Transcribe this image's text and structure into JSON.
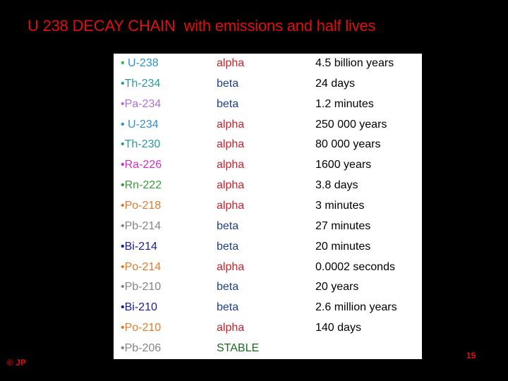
{
  "slide": {
    "title": "U 238 DECAY CHAIN  with emissions and half lives",
    "copyright": "© JP",
    "page_number": "15"
  },
  "colors": {
    "title": "#e01010",
    "alpha": "#cc1f2a",
    "beta": "#1f3f8f",
    "stable": "#1a6b1f",
    "half_life": "#000000"
  },
  "rows": [
    {
      "bullet": "• ",
      "isotope": "U-238",
      "isotope_color": "#2f8fd6",
      "bullet_color": "#33bb33",
      "emission": "alpha",
      "emission_color": "#cc1f2a",
      "half_life": "4.5 billion years"
    },
    {
      "bullet": "•",
      "isotope": "Th-234",
      "isotope_color": "#2a9a9a",
      "bullet_color": "#2a9a9a",
      "emission": "beta",
      "emission_color": "#1f3f8f",
      "half_life": "24 days"
    },
    {
      "bullet": "•",
      "isotope": "Pa-234",
      "isotope_color": "#b070d8",
      "bullet_color": "#b070d8",
      "emission": "beta",
      "emission_color": "#1f3f8f",
      "half_life": "1.2 minutes"
    },
    {
      "bullet": "• ",
      "isotope": "U-234",
      "isotope_color": "#2f8fd6",
      "bullet_color": "#2f8fd6",
      "emission": "alpha",
      "emission_color": "#cc1f2a",
      "half_life": "250 000 years"
    },
    {
      "bullet": "•",
      "isotope": "Th-230",
      "isotope_color": "#2a9a9a",
      "bullet_color": "#2a9a9a",
      "emission": "alpha",
      "emission_color": "#cc1f2a",
      "half_life": "80 000 years"
    },
    {
      "bullet": "•",
      "isotope": "Ra-226",
      "isotope_color": "#d030c8",
      "bullet_color": "#d030c8",
      "emission": "alpha",
      "emission_color": "#cc1f2a",
      "half_life": "1600 years"
    },
    {
      "bullet": "•",
      "isotope": "Rn-222",
      "isotope_color": "#3a9a3a",
      "bullet_color": "#3a9a3a",
      "emission": "alpha",
      "emission_color": "#cc1f2a",
      "half_life": "3.8 days"
    },
    {
      "bullet": "•",
      "isotope": "Po-218",
      "isotope_color": "#e07a2a",
      "bullet_color": "#e07a2a",
      "emission": "alpha",
      "emission_color": "#cc1f2a",
      "half_life": "3 minutes"
    },
    {
      "bullet": "•",
      "isotope": "Pb-214",
      "isotope_color": "#858585",
      "bullet_color": "#858585",
      "emission": "beta",
      "emission_color": "#1f3f8f",
      "half_life": "27 minutes"
    },
    {
      "bullet": "•",
      "isotope": "Bi-214",
      "isotope_color": "#1a1aa0",
      "bullet_color": "#1a1aa0",
      "emission": "beta",
      "emission_color": "#1f3f8f",
      "half_life": "20 minutes"
    },
    {
      "bullet": "•",
      "isotope": "Po-214",
      "isotope_color": "#e07a2a",
      "bullet_color": "#e07a2a",
      "emission": "alpha",
      "emission_color": "#cc1f2a",
      "half_life": "0.0002 seconds"
    },
    {
      "bullet": "•",
      "isotope": "Pb-210",
      "isotope_color": "#858585",
      "bullet_color": "#858585",
      "emission": "beta",
      "emission_color": "#1f3f8f",
      "half_life": "20 years"
    },
    {
      "bullet": "•",
      "isotope": "Bi-210",
      "isotope_color": "#1a1aa0",
      "bullet_color": "#1a1aa0",
      "emission": "beta",
      "emission_color": "#1f3f8f",
      "half_life": "2.6 million years"
    },
    {
      "bullet": "•",
      "isotope": "Po-210",
      "isotope_color": "#e07a2a",
      "bullet_color": "#e07a2a",
      "emission": "alpha",
      "emission_color": "#cc1f2a",
      "half_life": "140 days"
    },
    {
      "bullet": "•",
      "isotope": "Pb-206",
      "isotope_color": "#858585",
      "bullet_color": "#858585",
      "emission": "STABLE",
      "emission_color": "#1a6b1f",
      "half_life": ""
    }
  ]
}
